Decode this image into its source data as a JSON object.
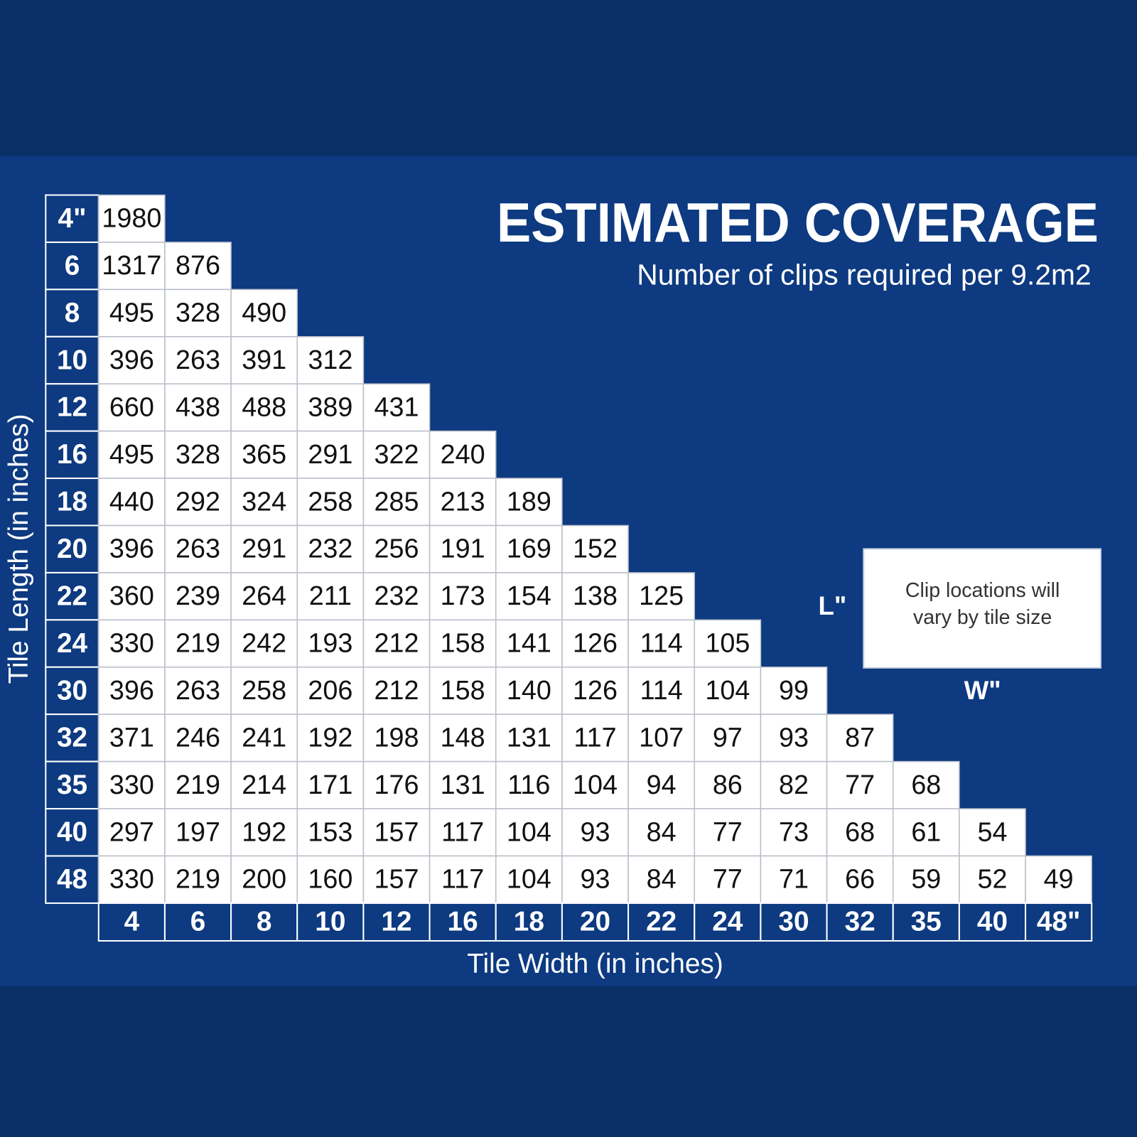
{
  "header": {
    "title": "ESTIMATED COVERAGE",
    "subtitle": "Number of clips required per 9.2m2"
  },
  "table": {
    "row_axis_label": "Tile Length (in inches)",
    "column_axis_label": "Tile Width (in inches)",
    "columns": [
      "4",
      "6",
      "8",
      "10",
      "12",
      "16",
      "18",
      "20",
      "22",
      "24",
      "30",
      "32",
      "35",
      "40",
      "48\""
    ],
    "rows": [
      {
        "label": "4\"",
        "cells": [
          1980
        ]
      },
      {
        "label": "6",
        "cells": [
          1317,
          876
        ]
      },
      {
        "label": "8",
        "cells": [
          495,
          328,
          490
        ]
      },
      {
        "label": "10",
        "cells": [
          396,
          263,
          391,
          312
        ]
      },
      {
        "label": "12",
        "cells": [
          660,
          438,
          488,
          389,
          431
        ]
      },
      {
        "label": "16",
        "cells": [
          495,
          328,
          365,
          291,
          322,
          240
        ]
      },
      {
        "label": "18",
        "cells": [
          440,
          292,
          324,
          258,
          285,
          213,
          189
        ]
      },
      {
        "label": "20",
        "cells": [
          396,
          263,
          291,
          232,
          256,
          191,
          169,
          152
        ]
      },
      {
        "label": "22",
        "cells": [
          360,
          239,
          264,
          211,
          232,
          173,
          154,
          138,
          125
        ]
      },
      {
        "label": "24",
        "cells": [
          330,
          219,
          242,
          193,
          212,
          158,
          141,
          126,
          114,
          105
        ]
      },
      {
        "label": "30",
        "cells": [
          396,
          263,
          258,
          206,
          212,
          158,
          140,
          126,
          114,
          104,
          99
        ]
      },
      {
        "label": "32",
        "cells": [
          371,
          246,
          241,
          192,
          198,
          148,
          131,
          117,
          107,
          97,
          93,
          87
        ]
      },
      {
        "label": "35",
        "cells": [
          330,
          219,
          214,
          171,
          176,
          131,
          116,
          104,
          94,
          86,
          82,
          77,
          68
        ]
      },
      {
        "label": "40",
        "cells": [
          297,
          197,
          192,
          153,
          157,
          117,
          104,
          93,
          84,
          77,
          73,
          68,
          61,
          54
        ]
      },
      {
        "label": "48",
        "cells": [
          330,
          219,
          200,
          160,
          157,
          117,
          104,
          93,
          84,
          77,
          71,
          66,
          59,
          52,
          49
        ]
      }
    ]
  },
  "diagram": {
    "length_label": "L\"",
    "width_label": "W\"",
    "note_lines": [
      "Clip locations will",
      "vary by tile size"
    ]
  }
}
